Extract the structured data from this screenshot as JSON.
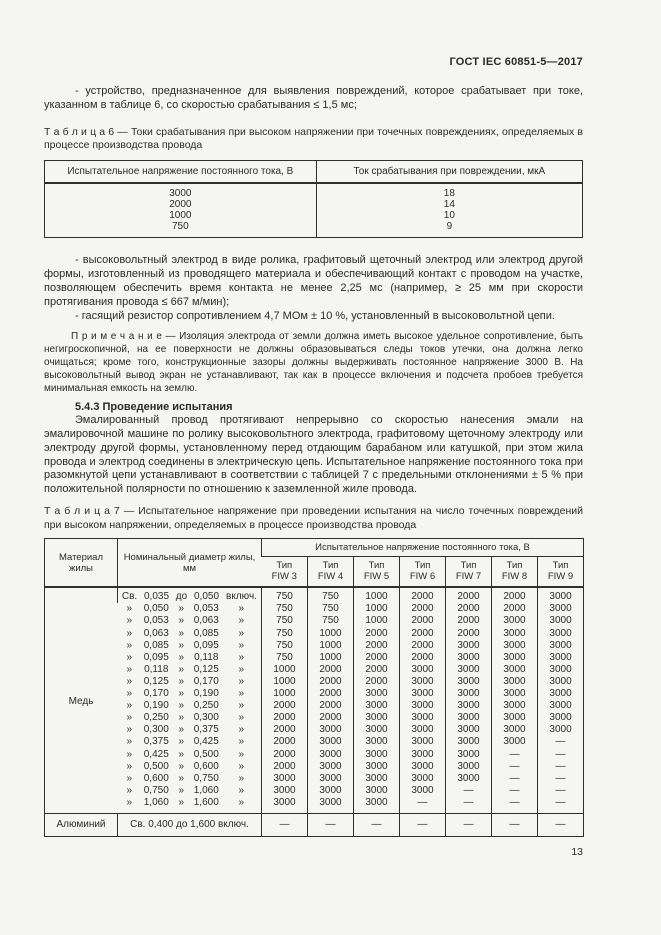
{
  "header": {
    "doc_number": "ГОСТ IEC 60851-5—2017"
  },
  "page_number": "13",
  "colors": {
    "page_bg": "#f5f5f3",
    "text": "#2b2b2b",
    "border": "#2f2f2f"
  },
  "paragraphs": {
    "p_device": "- устройство, предназначенное для выявления повреждений, которое срабатывает при токе, указанном в таблице 6, со скоростью срабатывания ≤ 1,5 мс;",
    "p_electrode": "- высоковольтный электрод в виде ролика, графитовый щеточный электрод или электрод другой формы, изготовленный из проводящего материала и обеспечивающий контакт с проводом на участке, позволяющем обеспечить время контакта не менее 2,25 мс (например, ≥ 25 мм при скорости протягивания провода ≤ 667 м/мин);",
    "p_resistor": "- гасящий резистор сопротивлением 4,7 МОм ± 10 %, установленный в высоковольтной цепи.",
    "note": "П р и м е ч а н и е — Изоляция электрода от земли должна иметь высокое удельное сопротивление, быть негигроскопичной, на ее поверхности не должны образовываться следы токов утечки, она должна легко очищаться; кроме того, конструкционные зазоры должны выдерживать постоянное напряжение 3000 В. На высоковольтный вывод экран не устанавливают, так как в процессе включения и подсчета пробоев требуется минимальная емкость на землю.",
    "p_procedure": "Эмалированный провод протягивают непрерывно со скоростью нанесения эмали на эмалировочной машине по ролику высоковольтного электрода, графитовому щеточному электроду или электроду другой формы, установленному перед отдающим барабаном или катушкой, при этом жила провода и электрод соединены в электрическую цепь. Испытательное напряжение постоянного тока при разомкнутой цепи устанавливают в соответствии с таблицей 7 с предельными отклонениями ± 5 % при положительной полярности по отношению к заземленной жиле провода."
  },
  "section": {
    "heading": "5.4.3 Проведение испытания"
  },
  "table6": {
    "caption": "Т а б л и ц а  6 — Токи срабатывания при высоком напряжении при точечных повреждениях, определяемых в процессе производства провода",
    "col_voltage": "Испытательное напряжение постоянного тока, В",
    "col_current": "Ток срабатывания при повреждении, мкА",
    "rows": [
      {
        "voltage": "3000",
        "current": "18"
      },
      {
        "voltage": "2000",
        "current": "14"
      },
      {
        "voltage": "1000",
        "current": "10"
      },
      {
        "voltage": "750",
        "current": "9"
      }
    ]
  },
  "table7": {
    "caption": "Т а б л и ц а  7 — Испытательное напряжение при проведении испытания на число точечных повреждений при высоком напряжении, определяемых в процессе производства провода",
    "col_material": "Материал жилы",
    "col_diameter": "Номинальный диаметр жилы, мм",
    "span_header": "Испытательное напряжение постоянного тока, В",
    "type_headers": [
      {
        "l1": "Тип",
        "l2": "FIW 3"
      },
      {
        "l1": "Тип",
        "l2": "FIW 4"
      },
      {
        "l1": "Тип",
        "l2": "FIW 5"
      },
      {
        "l1": "Тип",
        "l2": "FIW 6"
      },
      {
        "l1": "Тип",
        "l2": "FIW 7"
      },
      {
        "l1": "Тип",
        "l2": "FIW 8"
      },
      {
        "l1": "Тип",
        "l2": "FIW 9"
      }
    ],
    "copper": {
      "material": "Медь",
      "rows": [
        {
          "d": [
            "Св.",
            "0,035",
            "до",
            "0,050",
            "включ."
          ],
          "v": [
            "750",
            "750",
            "1000",
            "2000",
            "2000",
            "2000",
            "3000"
          ]
        },
        {
          "d": [
            "»",
            "0,050",
            "»",
            "0,053",
            "»"
          ],
          "v": [
            "750",
            "750",
            "1000",
            "2000",
            "2000",
            "2000",
            "3000"
          ]
        },
        {
          "d": [
            "»",
            "0,053",
            "»",
            "0,063",
            "»"
          ],
          "v": [
            "750",
            "750",
            "1000",
            "2000",
            "2000",
            "3000",
            "3000"
          ]
        },
        {
          "d": [
            "»",
            "0,063",
            "»",
            "0,085",
            "»"
          ],
          "v": [
            "750",
            "1000",
            "2000",
            "2000",
            "2000",
            "3000",
            "3000"
          ]
        },
        {
          "d": [
            "»",
            "0,085",
            "»",
            "0,095",
            "»"
          ],
          "v": [
            "750",
            "1000",
            "2000",
            "2000",
            "3000",
            "3000",
            "3000"
          ]
        },
        {
          "d": [
            "»",
            "0,095",
            "»",
            "0,118",
            "»"
          ],
          "v": [
            "750",
            "1000",
            "2000",
            "2000",
            "3000",
            "3000",
            "3000"
          ]
        },
        {
          "d": [
            "»",
            "0,118",
            "»",
            "0,125",
            "»"
          ],
          "v": [
            "1000",
            "2000",
            "2000",
            "3000",
            "3000",
            "3000",
            "3000"
          ]
        },
        {
          "d": [
            "»",
            "0,125",
            "»",
            "0,170",
            "»"
          ],
          "v": [
            "1000",
            "2000",
            "2000",
            "3000",
            "3000",
            "3000",
            "3000"
          ]
        },
        {
          "d": [
            "»",
            "0,170",
            "»",
            "0,190",
            "»"
          ],
          "v": [
            "1000",
            "2000",
            "3000",
            "3000",
            "3000",
            "3000",
            "3000"
          ]
        },
        {
          "d": [
            "»",
            "0,190",
            "»",
            "0,250",
            "»"
          ],
          "v": [
            "2000",
            "2000",
            "3000",
            "3000",
            "3000",
            "3000",
            "3000"
          ]
        },
        {
          "d": [
            "»",
            "0,250",
            "»",
            "0,300",
            "»"
          ],
          "v": [
            "2000",
            "2000",
            "3000",
            "3000",
            "3000",
            "3000",
            "3000"
          ]
        },
        {
          "d": [
            "»",
            "0,300",
            "»",
            "0,375",
            "»"
          ],
          "v": [
            "2000",
            "3000",
            "3000",
            "3000",
            "3000",
            "3000",
            "3000"
          ]
        },
        {
          "d": [
            "»",
            "0,375",
            "»",
            "0,425",
            "»"
          ],
          "v": [
            "2000",
            "3000",
            "3000",
            "3000",
            "3000",
            "3000",
            "—"
          ]
        },
        {
          "d": [
            "»",
            "0,425",
            "»",
            "0,500",
            "»"
          ],
          "v": [
            "2000",
            "3000",
            "3000",
            "3000",
            "3000",
            "—",
            "—"
          ]
        },
        {
          "d": [
            "»",
            "0,500",
            "»",
            "0,600",
            "»"
          ],
          "v": [
            "2000",
            "3000",
            "3000",
            "3000",
            "3000",
            "—",
            "—"
          ]
        },
        {
          "d": [
            "»",
            "0,600",
            "»",
            "0,750",
            "»"
          ],
          "v": [
            "3000",
            "3000",
            "3000",
            "3000",
            "3000",
            "—",
            "—"
          ]
        },
        {
          "d": [
            "»",
            "0,750",
            "»",
            "1,060",
            "»"
          ],
          "v": [
            "3000",
            "3000",
            "3000",
            "3000",
            "—",
            "—",
            "—"
          ]
        },
        {
          "d": [
            "»",
            "1,060",
            "»",
            "1,600",
            "»"
          ],
          "v": [
            "3000",
            "3000",
            "3000",
            "—",
            "—",
            "—",
            "—"
          ]
        }
      ]
    },
    "aluminum": {
      "material": "Алюминий",
      "diameter": "Св. 0,400 до 1,600 включ.",
      "v": [
        "—",
        "—",
        "—",
        "—",
        "—",
        "—",
        "—"
      ]
    }
  }
}
